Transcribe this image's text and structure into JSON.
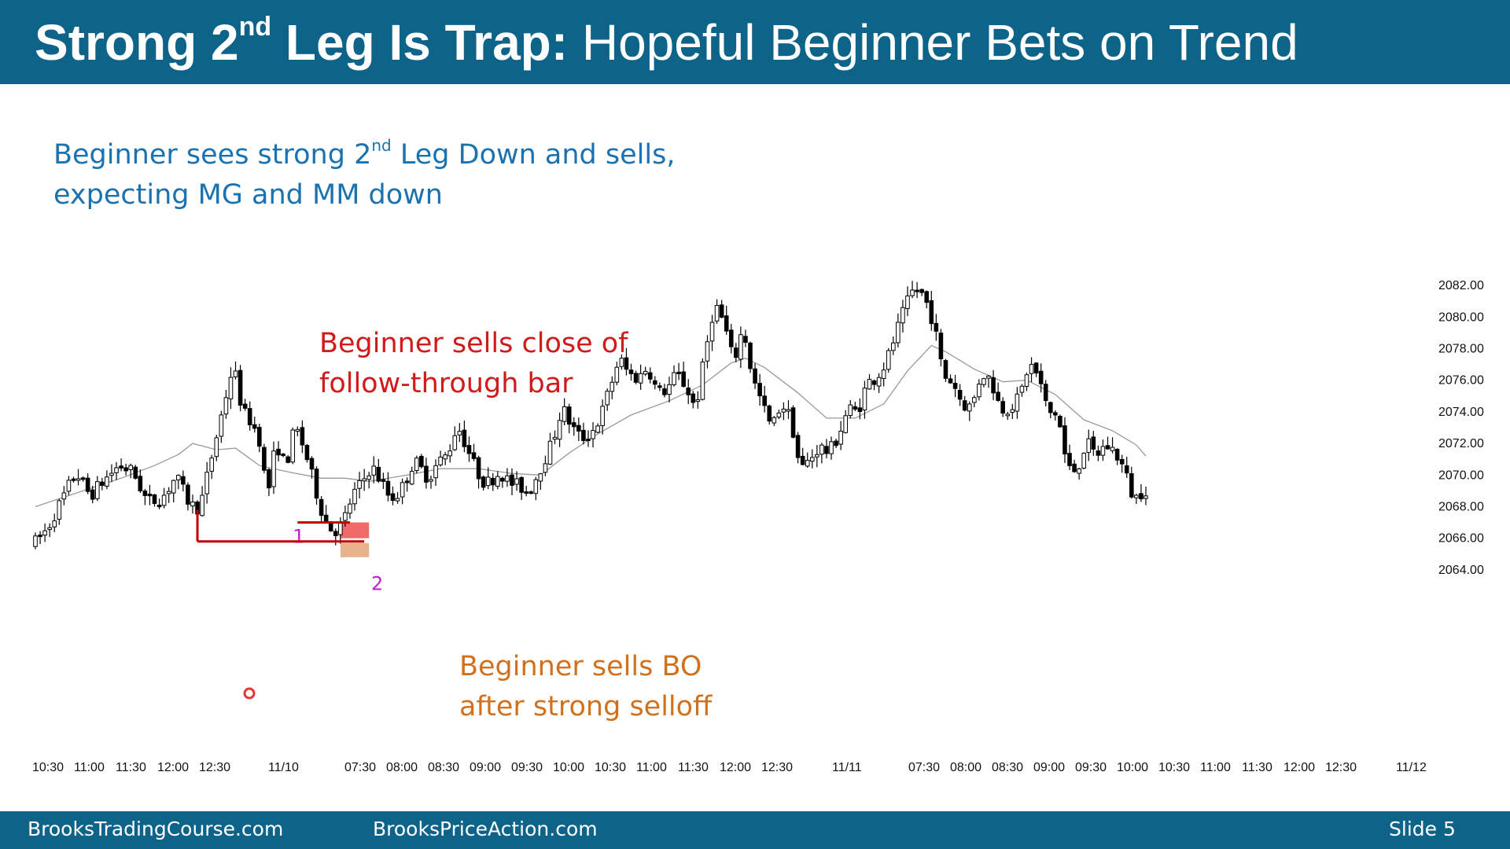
{
  "title": {
    "part1": "Strong 2",
    "sup": "nd",
    "part2": " Leg Is Trap:",
    "part3": " Hopeful Beginner Bets on Trend"
  },
  "notes": {
    "top_line1a": "Beginner sees strong 2",
    "top_line1_sup": "nd",
    "top_line1b": " Leg Down and sells,",
    "top_line2": "expecting MG and MM down",
    "red_line1": "Beginner sells close of",
    "red_line2": "follow-through bar",
    "orange_line1": "Beginner sells BO",
    "orange_line2": "after strong selloff"
  },
  "footer": {
    "left": "BrooksTradingCourse.com",
    "middle": "BrooksPriceAction.com",
    "right": "Slide  5"
  },
  "colors": {
    "header": "#0e6389",
    "bear_bar": "#000000",
    "bull_bar": "#ffffff",
    "moving_average": "#9a9a9a",
    "leg_lines": "#c00000",
    "red_box": "#ee5050",
    "orange_box": "#e0a070",
    "leg_labels": "#c21ad1"
  },
  "chart_data": {
    "type": "candlestick",
    "y_axis_position": "right",
    "ylim": [
      2062.6,
      2083.4
    ],
    "yticks": [
      "2082.00",
      "2080.00",
      "2078.00",
      "2076.00",
      "2074.00",
      "2072.00",
      "2070.00",
      "2068.00",
      "2066.00",
      "2064.00"
    ],
    "xticks": [
      "10:30",
      "11:00",
      "11:30",
      "12:00",
      "12:30",
      "11/10",
      "07:30",
      "08:00",
      "08:30",
      "09:00",
      "09:30",
      "10:00",
      "10:30",
      "11:00",
      "11:30",
      "12:00",
      "12:30",
      "11/11",
      "07:30",
      "08:00",
      "08:30",
      "09:00",
      "09:30",
      "10:00",
      "10:30",
      "11:00",
      "11:30",
      "12:00",
      "12:30",
      "11/12"
    ],
    "anchors": [
      {
        "bar": 0,
        "price": 2065.6
      },
      {
        "bar": 3,
        "price": 2066.6
      },
      {
        "bar": 6,
        "price": 2068.4
      },
      {
        "bar": 9,
        "price": 2070.2
      },
      {
        "bar": 12,
        "price": 2068.7
      },
      {
        "bar": 15,
        "price": 2069.7
      },
      {
        "bar": 18,
        "price": 2070.6
      },
      {
        "bar": 21,
        "price": 2070.2
      },
      {
        "bar": 24,
        "price": 2068.3
      },
      {
        "bar": 27,
        "price": 2068.5
      },
      {
        "bar": 30,
        "price": 2069.9
      },
      {
        "bar": 33,
        "price": 2068.1
      },
      {
        "bar": 35,
        "price": 2067.9
      },
      {
        "bar": 38,
        "price": 2071.8
      },
      {
        "bar": 40,
        "price": 2074.4
      },
      {
        "bar": 42,
        "price": 2077.0
      },
      {
        "bar": 44,
        "price": 2074.0
      },
      {
        "bar": 46,
        "price": 2073.3
      },
      {
        "bar": 48,
        "price": 2071.9
      },
      {
        "bar": 49,
        "price": 2068.3
      },
      {
        "bar": 51,
        "price": 2072.1
      },
      {
        "bar": 53,
        "price": 2070.5
      },
      {
        "bar": 55,
        "price": 2073.1
      },
      {
        "bar": 57,
        "price": 2071.6
      },
      {
        "bar": 59,
        "price": 2069.4
      },
      {
        "bar": 61,
        "price": 2067.3
      },
      {
        "bar": 63,
        "price": 2066.4
      },
      {
        "bar": 65,
        "price": 2066.9
      },
      {
        "bar": 67,
        "price": 2068.7
      },
      {
        "bar": 69,
        "price": 2069.5
      },
      {
        "bar": 71,
        "price": 2070.6
      },
      {
        "bar": 73,
        "price": 2069.6
      },
      {
        "bar": 75,
        "price": 2068.5
      },
      {
        "bar": 77,
        "price": 2068.9
      },
      {
        "bar": 80,
        "price": 2070.9
      },
      {
        "bar": 83,
        "price": 2069.8
      },
      {
        "bar": 85,
        "price": 2070.8
      },
      {
        "bar": 87,
        "price": 2071.3
      },
      {
        "bar": 89,
        "price": 2073.2
      },
      {
        "bar": 91,
        "price": 2071.8
      },
      {
        "bar": 93,
        "price": 2070.3
      },
      {
        "bar": 95,
        "price": 2069.4
      },
      {
        "bar": 98,
        "price": 2070.2
      },
      {
        "bar": 100,
        "price": 2069.5
      },
      {
        "bar": 102,
        "price": 2069.3
      },
      {
        "bar": 104,
        "price": 2068.9
      },
      {
        "bar": 107,
        "price": 2070.8
      },
      {
        "bar": 109,
        "price": 2072.1
      },
      {
        "bar": 111,
        "price": 2074.3
      },
      {
        "bar": 113,
        "price": 2073.1
      },
      {
        "bar": 115,
        "price": 2072.3
      },
      {
        "bar": 117,
        "price": 2072.6
      },
      {
        "bar": 119,
        "price": 2073.6
      },
      {
        "bar": 121,
        "price": 2075.5
      },
      {
        "bar": 123,
        "price": 2077.4
      },
      {
        "bar": 125,
        "price": 2076.4
      },
      {
        "bar": 127,
        "price": 2076.1
      },
      {
        "bar": 129,
        "price": 2076.9
      },
      {
        "bar": 131,
        "price": 2075.2
      },
      {
        "bar": 133,
        "price": 2075.4
      },
      {
        "bar": 135,
        "price": 2076.4
      },
      {
        "bar": 137,
        "price": 2075.6
      },
      {
        "bar": 139,
        "price": 2074.2
      },
      {
        "bar": 141,
        "price": 2077.6
      },
      {
        "bar": 143,
        "price": 2080.9
      },
      {
        "bar": 145,
        "price": 2079.6
      },
      {
        "bar": 147,
        "price": 2077.1
      },
      {
        "bar": 149,
        "price": 2079.4
      },
      {
        "bar": 151,
        "price": 2076.1
      },
      {
        "bar": 153,
        "price": 2074.5
      },
      {
        "bar": 155,
        "price": 2072.9
      },
      {
        "bar": 157,
        "price": 2074.6
      },
      {
        "bar": 159,
        "price": 2073.6
      },
      {
        "bar": 161,
        "price": 2070.3
      },
      {
        "bar": 163,
        "price": 2071.0
      },
      {
        "bar": 165,
        "price": 2071.8
      },
      {
        "bar": 167,
        "price": 2071.4
      },
      {
        "bar": 169,
        "price": 2072.5
      },
      {
        "bar": 171,
        "price": 2074.2
      },
      {
        "bar": 173,
        "price": 2074.0
      },
      {
        "bar": 175,
        "price": 2075.8
      },
      {
        "bar": 177,
        "price": 2076.2
      },
      {
        "bar": 179,
        "price": 2077.1
      },
      {
        "bar": 181,
        "price": 2078.9
      },
      {
        "bar": 183,
        "price": 2080.6
      },
      {
        "bar": 185,
        "price": 2081.9
      },
      {
        "bar": 187,
        "price": 2081.3
      },
      {
        "bar": 189,
        "price": 2079.6
      },
      {
        "bar": 191,
        "price": 2076.3
      },
      {
        "bar": 193,
        "price": 2075.9
      },
      {
        "bar": 195,
        "price": 2074.5
      },
      {
        "bar": 197,
        "price": 2074.3
      },
      {
        "bar": 199,
        "price": 2076.5
      },
      {
        "bar": 201,
        "price": 2076.0
      },
      {
        "bar": 203,
        "price": 2074.2
      },
      {
        "bar": 205,
        "price": 2074.3
      },
      {
        "bar": 207,
        "price": 2074.9
      },
      {
        "bar": 209,
        "price": 2077.1
      },
      {
        "bar": 211,
        "price": 2076.2
      },
      {
        "bar": 213,
        "price": 2073.9
      },
      {
        "bar": 215,
        "price": 2073.9
      },
      {
        "bar": 217,
        "price": 2070.4
      },
      {
        "bar": 219,
        "price": 2070.3
      },
      {
        "bar": 221,
        "price": 2072.1
      },
      {
        "bar": 223,
        "price": 2071.2
      },
      {
        "bar": 225,
        "price": 2071.9
      },
      {
        "bar": 227,
        "price": 2071.5
      },
      {
        "bar": 229,
        "price": 2070.3
      },
      {
        "bar": 231,
        "price": 2068.4
      },
      {
        "bar": 233,
        "price": 2069.1
      }
    ],
    "moving_average": [
      {
        "bar": 0,
        "price": 2068.0
      },
      {
        "bar": 9,
        "price": 2068.9
      },
      {
        "bar": 18,
        "price": 2069.8
      },
      {
        "bar": 25,
        "price": 2070.6
      },
      {
        "bar": 30,
        "price": 2071.3
      },
      {
        "bar": 33,
        "price": 2072.0
      },
      {
        "bar": 38,
        "price": 2071.6
      },
      {
        "bar": 42,
        "price": 2071.7
      },
      {
        "bar": 47,
        "price": 2070.6
      },
      {
        "bar": 53,
        "price": 2070.2
      },
      {
        "bar": 60,
        "price": 2069.8
      },
      {
        "bar": 65,
        "price": 2069.8
      },
      {
        "bar": 70,
        "price": 2069.6
      },
      {
        "bar": 78,
        "price": 2070.0
      },
      {
        "bar": 85,
        "price": 2070.4
      },
      {
        "bar": 93,
        "price": 2070.4
      },
      {
        "bar": 100,
        "price": 2070.1
      },
      {
        "bar": 106,
        "price": 2070.0
      },
      {
        "bar": 112,
        "price": 2071.4
      },
      {
        "bar": 118,
        "price": 2072.6
      },
      {
        "bar": 125,
        "price": 2073.8
      },
      {
        "bar": 133,
        "price": 2074.7
      },
      {
        "bar": 140,
        "price": 2075.7
      },
      {
        "bar": 146,
        "price": 2077.1
      },
      {
        "bar": 149,
        "price": 2077.4
      },
      {
        "bar": 153,
        "price": 2076.8
      },
      {
        "bar": 160,
        "price": 2075.2
      },
      {
        "bar": 166,
        "price": 2073.6
      },
      {
        "bar": 172,
        "price": 2073.6
      },
      {
        "bar": 178,
        "price": 2074.5
      },
      {
        "bar": 183,
        "price": 2076.6
      },
      {
        "bar": 188,
        "price": 2078.2
      },
      {
        "bar": 191,
        "price": 2077.8
      },
      {
        "bar": 197,
        "price": 2076.7
      },
      {
        "bar": 203,
        "price": 2075.9
      },
      {
        "bar": 208,
        "price": 2076.0
      },
      {
        "bar": 214,
        "price": 2075.1
      },
      {
        "bar": 220,
        "price": 2073.5
      },
      {
        "bar": 226,
        "price": 2072.8
      },
      {
        "bar": 231,
        "price": 2071.9
      },
      {
        "bar": 233,
        "price": 2071.2
      }
    ],
    "legs": [
      {
        "label": "1",
        "from_bar": 55,
        "to_bar": 66,
        "price": 2067.0
      },
      {
        "label": "2",
        "from_bar": 34,
        "to_bar": 69,
        "price": 2065.8
      }
    ],
    "entry_boxes": [
      {
        "name": "follow-through close sell",
        "bar_from": 64,
        "bar_to": 70,
        "price_low": 2066.0,
        "price_high": 2067.0
      },
      {
        "name": "breakout sell",
        "bar_from": 64,
        "bar_to": 70,
        "price_low": 2064.8,
        "price_high": 2065.7
      }
    ]
  }
}
